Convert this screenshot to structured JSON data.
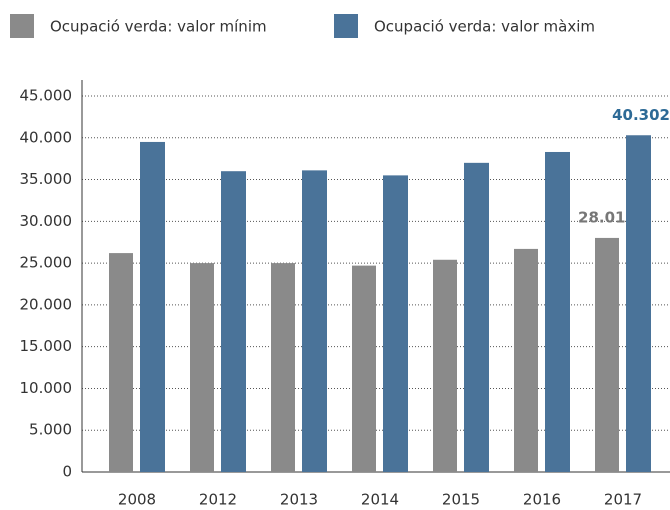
{
  "chart_data": {
    "type": "bar",
    "categories": [
      "2008",
      "2012",
      "2013",
      "2014",
      "2015",
      "2016",
      "2017"
    ],
    "series": [
      {
        "name": "Ocupació verda: valor mínim",
        "color": "#8a8a8a",
        "values": [
          26200,
          25000,
          25000,
          24700,
          25400,
          26700,
          28014
        ],
        "value_labels": [
          null,
          null,
          null,
          null,
          null,
          null,
          "28.014"
        ]
      },
      {
        "name": "Ocupació verda: valor màxim",
        "color": "#4a7399",
        "values": [
          39500,
          36000,
          36100,
          35500,
          37000,
          38300,
          40302
        ],
        "value_labels": [
          null,
          null,
          null,
          null,
          null,
          null,
          "40.302"
        ]
      }
    ],
    "ylim": [
      0,
      45000
    ],
    "yticks": [
      0,
      {
        "value": 5000,
        "label": "5.000"
      },
      {
        "value": 10000,
        "label": "10.000"
      },
      {
        "value": 15000,
        "label": "15.000"
      },
      {
        "value": 20000,
        "label": "20.000"
      },
      {
        "value": 25000,
        "label": "25.000"
      },
      {
        "value": 30000,
        "label": "30.000"
      },
      {
        "value": 35000,
        "label": "35.000"
      },
      {
        "value": 40000,
        "label": "40.000"
      },
      {
        "value": 45000,
        "label": "45.000"
      }
    ],
    "grid": true,
    "legend": "top"
  }
}
